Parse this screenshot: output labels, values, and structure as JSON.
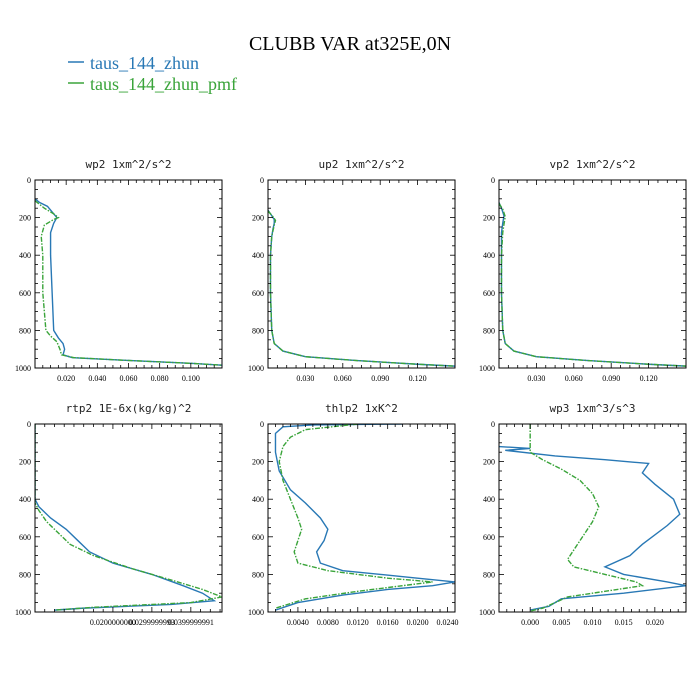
{
  "figure": {
    "title": "CLUBB VAR at325E,0N",
    "legend": [
      {
        "label": "taus_144_zhun",
        "color": "#2878b5"
      },
      {
        "label": "taus_144_zhun_pmf",
        "color": "#3aa43a",
        "dash": true
      }
    ]
  },
  "chart_data": [
    {
      "type": "line",
      "title": "wp2  1xm^2/s^2",
      "xlim": [
        0,
        0.12
      ],
      "ylim": [
        1000,
        0
      ],
      "xticks": [
        0.02,
        0.04,
        0.06,
        0.08,
        0.1
      ],
      "xtick_labels": [
        "0.020",
        "0.040",
        "0.060",
        "0.080",
        "0.100"
      ],
      "yticks": [
        0,
        200,
        400,
        600,
        800,
        1000
      ],
      "series": [
        {
          "color": "#2878b5",
          "points": [
            [
              0.0,
              100
            ],
            [
              0.003,
              120
            ],
            [
              0.008,
              140
            ],
            [
              0.01,
              160
            ],
            [
              0.012,
              180
            ],
            [
              0.014,
              200
            ],
            [
              0.012,
              230
            ],
            [
              0.01,
              280
            ],
            [
              0.01,
              400
            ],
            [
              0.011,
              600
            ],
            [
              0.012,
              800
            ],
            [
              0.015,
              840
            ],
            [
              0.018,
              870
            ],
            [
              0.019,
              900
            ],
            [
              0.018,
              930
            ],
            [
              0.024,
              945
            ],
            [
              0.06,
              960
            ],
            [
              0.1,
              975
            ],
            [
              0.12,
              985
            ]
          ]
        },
        {
          "color": "#3aa43a",
          "dash": true,
          "points": [
            [
              0.0,
              110
            ],
            [
              0.006,
              150
            ],
            [
              0.012,
              180
            ],
            [
              0.015,
              200
            ],
            [
              0.012,
              210
            ],
            [
              0.006,
              240
            ],
            [
              0.004,
              300
            ],
            [
              0.005,
              400
            ],
            [
              0.005,
              600
            ],
            [
              0.007,
              800
            ],
            [
              0.01,
              830
            ],
            [
              0.014,
              860
            ],
            [
              0.016,
              900
            ],
            [
              0.017,
              930
            ],
            [
              0.025,
              945
            ],
            [
              0.06,
              960
            ],
            [
              0.1,
              975
            ],
            [
              0.12,
              985
            ]
          ]
        }
      ]
    },
    {
      "type": "line",
      "title": "up2  1xm^2/s^2",
      "xlim": [
        0,
        0.15
      ],
      "ylim": [
        1000,
        0
      ],
      "xticks": [
        0.03,
        0.06,
        0.09,
        0.12
      ],
      "xtick_labels": [
        "0.030",
        "0.060",
        "0.090",
        "0.120"
      ],
      "yticks": [
        0,
        200,
        400,
        600,
        800,
        1000
      ],
      "series": [
        {
          "color": "#2878b5",
          "points": [
            [
              0.0,
              160
            ],
            [
              0.003,
              190
            ],
            [
              0.005,
              210
            ],
            [
              0.005,
              230
            ],
            [
              0.004,
              260
            ],
            [
              0.003,
              300
            ],
            [
              0.002,
              400
            ],
            [
              0.002,
              600
            ],
            [
              0.003,
              800
            ],
            [
              0.005,
              870
            ],
            [
              0.012,
              910
            ],
            [
              0.03,
              940
            ],
            [
              0.07,
              960
            ],
            [
              0.12,
              980
            ],
            [
              0.15,
              990
            ]
          ]
        },
        {
          "color": "#3aa43a",
          "dash": true,
          "points": [
            [
              0.0,
              165
            ],
            [
              0.004,
              195
            ],
            [
              0.006,
              215
            ],
            [
              0.005,
              240
            ],
            [
              0.004,
              270
            ],
            [
              0.003,
              300
            ],
            [
              0.002,
              400
            ],
            [
              0.002,
              600
            ],
            [
              0.003,
              800
            ],
            [
              0.005,
              870
            ],
            [
              0.012,
              910
            ],
            [
              0.03,
              940
            ],
            [
              0.07,
              960
            ],
            [
              0.12,
              980
            ],
            [
              0.15,
              990
            ]
          ]
        }
      ]
    },
    {
      "type": "line",
      "title": "vp2  1xm^2/s^2",
      "xlim": [
        0,
        0.15
      ],
      "ylim": [
        1000,
        0
      ],
      "xticks": [
        0.03,
        0.06,
        0.09,
        0.12
      ],
      "xtick_labels": [
        "0.030",
        "0.060",
        "0.090",
        "0.120"
      ],
      "yticks": [
        0,
        200,
        400,
        600,
        800,
        1000
      ],
      "series": [
        {
          "color": "#2878b5",
          "points": [
            [
              0.0,
              120
            ],
            [
              0.002,
              150
            ],
            [
              0.004,
              190
            ],
            [
              0.003,
              230
            ],
            [
              0.002,
              280
            ],
            [
              0.002,
              400
            ],
            [
              0.002,
              600
            ],
            [
              0.003,
              800
            ],
            [
              0.005,
              870
            ],
            [
              0.012,
              910
            ],
            [
              0.03,
              940
            ],
            [
              0.07,
              960
            ],
            [
              0.12,
              980
            ],
            [
              0.15,
              990
            ]
          ]
        },
        {
          "color": "#3aa43a",
          "dash": true,
          "points": [
            [
              0.0,
              125
            ],
            [
              0.003,
              155
            ],
            [
              0.005,
              195
            ],
            [
              0.004,
              235
            ],
            [
              0.003,
              280
            ],
            [
              0.002,
              400
            ],
            [
              0.002,
              600
            ],
            [
              0.003,
              800
            ],
            [
              0.005,
              870
            ],
            [
              0.012,
              910
            ],
            [
              0.03,
              940
            ],
            [
              0.07,
              960
            ],
            [
              0.12,
              980
            ],
            [
              0.15,
              990
            ]
          ]
        }
      ]
    },
    {
      "type": "line",
      "title": "rtp2  1E-6x(kg/kg)^2",
      "xlim": [
        0,
        0.048
      ],
      "ylim": [
        1000,
        0
      ],
      "xticks": [
        0.02,
        0.03,
        0.04
      ],
      "xtick_labels": [
        "0.0200000000",
        "0.0299999993",
        "0.0399999991"
      ],
      "yticks": [
        0,
        200,
        400,
        600,
        800,
        1000
      ],
      "series": [
        {
          "color": "#2878b5",
          "points": [
            [
              0.0,
              0
            ],
            [
              0.0,
              400
            ],
            [
              0.001,
              440
            ],
            [
              0.004,
              500
            ],
            [
              0.008,
              560
            ],
            [
              0.011,
              620
            ],
            [
              0.014,
              680
            ],
            [
              0.02,
              740
            ],
            [
              0.03,
              800
            ],
            [
              0.038,
              860
            ],
            [
              0.043,
              900
            ],
            [
              0.046,
              940
            ],
            [
              0.035,
              960
            ],
            [
              0.012,
              980
            ],
            [
              0.005,
              990
            ]
          ]
        },
        {
          "color": "#3aa43a",
          "dash": true,
          "points": [
            [
              0.0,
              0
            ],
            [
              0.0,
              420
            ],
            [
              0.001,
              460
            ],
            [
              0.003,
              520
            ],
            [
              0.006,
              580
            ],
            [
              0.009,
              640
            ],
            [
              0.015,
              700
            ],
            [
              0.025,
              770
            ],
            [
              0.035,
              830
            ],
            [
              0.043,
              880
            ],
            [
              0.048,
              920
            ],
            [
              0.04,
              950
            ],
            [
              0.015,
              975
            ],
            [
              0.005,
              990
            ]
          ]
        }
      ]
    },
    {
      "type": "line",
      "title": "thlp2  1xK^2",
      "xlim": [
        0,
        0.025
      ],
      "ylim": [
        1000,
        0
      ],
      "xticks": [
        0.004,
        0.008,
        0.012,
        0.016,
        0.02,
        0.024
      ],
      "xtick_labels": [
        "0.0040",
        "0.0080",
        "0.0120",
        "0.0160",
        "0.0200",
        "0.0240"
      ],
      "yticks": [
        0,
        200,
        400,
        600,
        800,
        1000
      ],
      "series": [
        {
          "color": "#2878b5",
          "points": [
            [
              0.018,
              0
            ],
            [
              0.006,
              5
            ],
            [
              0.002,
              15
            ],
            [
              0.001,
              50
            ],
            [
              0.001,
              150
            ],
            [
              0.0015,
              250
            ],
            [
              0.003,
              350
            ],
            [
              0.005,
              420
            ],
            [
              0.007,
              500
            ],
            [
              0.008,
              560
            ],
            [
              0.0075,
              620
            ],
            [
              0.0065,
              680
            ],
            [
              0.007,
              740
            ],
            [
              0.01,
              780
            ],
            [
              0.02,
              820
            ],
            [
              0.025,
              840
            ],
            [
              0.022,
              860
            ],
            [
              0.016,
              880
            ],
            [
              0.01,
              910
            ],
            [
              0.004,
              950
            ],
            [
              0.001,
              990
            ]
          ]
        },
        {
          "color": "#3aa43a",
          "dash": true,
          "points": [
            [
              0.012,
              0
            ],
            [
              0.005,
              30
            ],
            [
              0.003,
              70
            ],
            [
              0.002,
              120
            ],
            [
              0.0015,
              200
            ],
            [
              0.002,
              300
            ],
            [
              0.003,
              400
            ],
            [
              0.004,
              500
            ],
            [
              0.0045,
              560
            ],
            [
              0.004,
              620
            ],
            [
              0.0035,
              680
            ],
            [
              0.004,
              740
            ],
            [
              0.008,
              780
            ],
            [
              0.016,
              820
            ],
            [
              0.022,
              840
            ],
            [
              0.018,
              860
            ],
            [
              0.012,
              890
            ],
            [
              0.005,
              930
            ],
            [
              0.001,
              980
            ]
          ]
        }
      ]
    },
    {
      "type": "line",
      "title": "wp3  1xm^3/s^3",
      "xlim": [
        -0.005,
        0.025
      ],
      "ylim": [
        1000,
        0
      ],
      "xticks": [
        0.0,
        0.005,
        0.01,
        0.015,
        0.02
      ],
      "xtick_labels": [
        "0.000",
        "0.005",
        "0.010",
        "0.015",
        "0.020"
      ],
      "yticks": [
        0,
        200,
        400,
        600,
        800,
        1000
      ],
      "series": [
        {
          "color": "#2878b5",
          "points": [
            [
              -0.005,
              120
            ],
            [
              0.0,
              130
            ],
            [
              -0.004,
              140
            ],
            [
              0.004,
              170
            ],
            [
              0.012,
              190
            ],
            [
              0.019,
              210
            ],
            [
              0.018,
              260
            ],
            [
              0.02,
              320
            ],
            [
              0.023,
              400
            ],
            [
              0.024,
              480
            ],
            [
              0.022,
              540
            ],
            [
              0.018,
              640
            ],
            [
              0.016,
              700
            ],
            [
              0.012,
              760
            ],
            [
              0.015,
              800
            ],
            [
              0.022,
              840
            ],
            [
              0.025,
              860
            ],
            [
              0.015,
              900
            ],
            [
              0.005,
              930
            ],
            [
              0.003,
              970
            ],
            [
              0.0,
              990
            ]
          ]
        },
        {
          "color": "#3aa43a",
          "dash": true,
          "points": [
            [
              0.0,
              0
            ],
            [
              0.0,
              150
            ],
            [
              0.002,
              190
            ],
            [
              0.005,
              240
            ],
            [
              0.008,
              300
            ],
            [
              0.01,
              370
            ],
            [
              0.011,
              440
            ],
            [
              0.01,
              520
            ],
            [
              0.008,
              620
            ],
            [
              0.006,
              720
            ],
            [
              0.007,
              760
            ],
            [
              0.012,
              800
            ],
            [
              0.017,
              840
            ],
            [
              0.018,
              860
            ],
            [
              0.012,
              890
            ],
            [
              0.006,
              920
            ],
            [
              0.004,
              950
            ],
            [
              0.002,
              980
            ],
            [
              0.0,
              995
            ]
          ]
        }
      ]
    }
  ]
}
